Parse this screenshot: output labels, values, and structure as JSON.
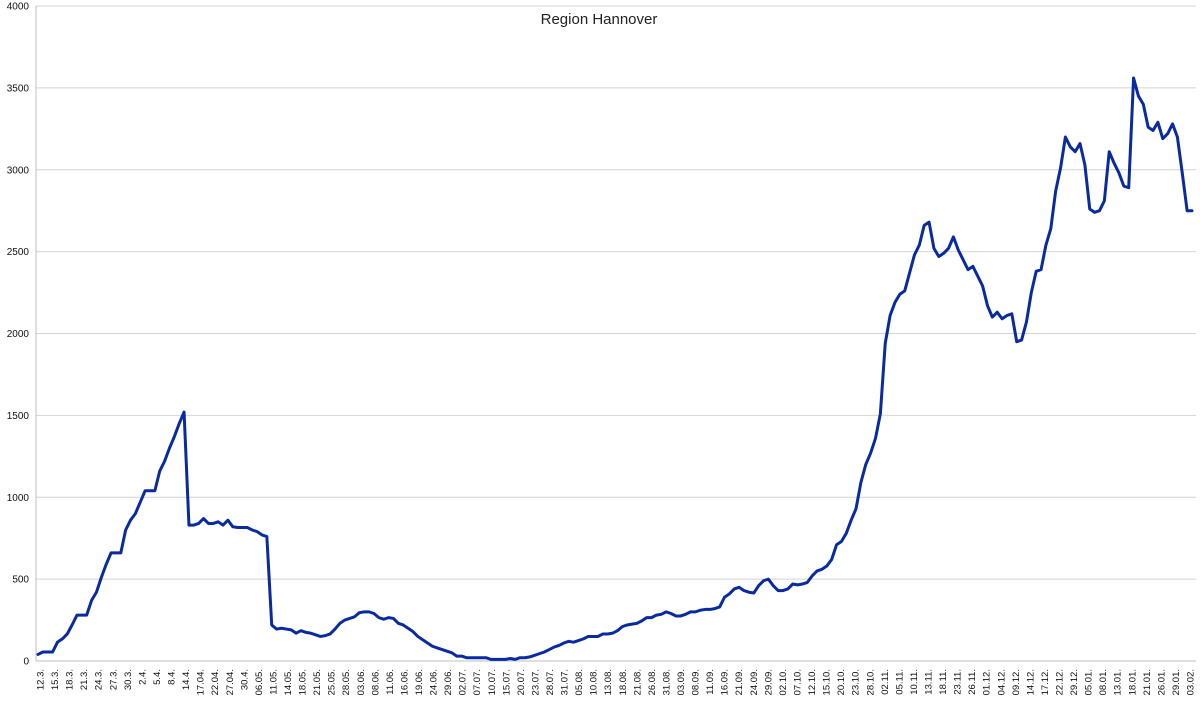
{
  "chart_data": {
    "type": "line",
    "title": "Region Hannover",
    "xlabel": "",
    "ylabel": "",
    "ylim": [
      0,
      4000
    ],
    "yticks": [
      0,
      500,
      1000,
      1500,
      2000,
      2500,
      3000,
      3500,
      4000
    ],
    "grid": true,
    "legend": "none",
    "x_tick_labels": [
      "12.3.",
      "15.3.",
      "18.3.",
      "21.3.",
      "24.3.",
      "27.3.",
      "30.3.",
      "2.4.",
      "5.4.",
      "8.4.",
      "14.4.",
      "17.04.",
      "22.04.",
      "27.04.",
      "30.4.",
      "06.05.",
      "11.05.",
      "14.05.",
      "18.05.",
      "21.05.",
      "25.05.",
      "28.05.",
      "03.06.",
      "08.06.",
      "11.06.",
      "16.06.",
      "19.06.",
      "24.06.",
      "29.06.",
      "02.07.",
      "07.07.",
      "10.07.",
      "15.07.",
      "20.07.",
      "23.07.",
      "28.07.",
      "31.07.",
      "05.08.",
      "10.08.",
      "13.08.",
      "18.08.",
      "21.08.",
      "26.08.",
      "31.08.",
      "03.09.",
      "08.09.",
      "11.09.",
      "16.09.",
      "21.09.",
      "24.09.",
      "29.09.",
      "02.10.",
      "07.10.",
      "12.10.",
      "15.10.",
      "20.10.",
      "23.10.",
      "28.10.",
      "02.11.",
      "05.11.",
      "10.11.",
      "13.11.",
      "18.11.",
      "23.11.",
      "26.11.",
      "01.12.",
      "04.12.",
      "09.12.",
      "14.12.",
      "17.12.",
      "22.12.",
      "29.12.",
      "05.01.",
      "08.01.",
      "13.01.",
      "18.01.",
      "21.01.",
      "26.01.",
      "29.01.",
      "03.02."
    ],
    "series": [
      {
        "color": "#0a2aa0",
        "values": [
          40,
          55,
          55,
          55,
          115,
          135,
          165,
          220,
          280,
          280,
          280,
          370,
          420,
          510,
          590,
          660,
          660,
          660,
          800,
          860,
          900,
          970,
          1040,
          1040,
          1040,
          1160,
          1220,
          1300,
          1370,
          1450,
          1520,
          830,
          830,
          840,
          870,
          840,
          840,
          850,
          830,
          860,
          820,
          815,
          815,
          815,
          800,
          790,
          770,
          760,
          220,
          195,
          200,
          195,
          190,
          170,
          185,
          175,
          170,
          160,
          150,
          155,
          165,
          195,
          230,
          250,
          260,
          270,
          295,
          300,
          300,
          290,
          265,
          255,
          265,
          260,
          230,
          220,
          200,
          180,
          150,
          130,
          110,
          90,
          80,
          70,
          60,
          50,
          30,
          30,
          20,
          20,
          20,
          20,
          20,
          10,
          10,
          10,
          10,
          15,
          10,
          20,
          20,
          25,
          35,
          45,
          55,
          70,
          85,
          95,
          110,
          120,
          115,
          125,
          135,
          150,
          150,
          150,
          165,
          165,
          170,
          185,
          210,
          220,
          225,
          230,
          245,
          265,
          265,
          280,
          285,
          300,
          290,
          275,
          275,
          285,
          300,
          300,
          310,
          315,
          315,
          320,
          330,
          390,
          410,
          440,
          450,
          430,
          420,
          415,
          460,
          490,
          500,
          460,
          430,
          430,
          440,
          470,
          465,
          470,
          480,
          520,
          550,
          560,
          580,
          620,
          710,
          730,
          780,
          860,
          930,
          1090,
          1200,
          1270,
          1360,
          1510,
          1940,
          2110,
          2190,
          2240,
          2260,
          2370,
          2480,
          2540,
          2660,
          2680,
          2520,
          2470,
          2490,
          2520,
          2590,
          2510,
          2450,
          2390,
          2410,
          2350,
          2290,
          2170,
          2100,
          2130,
          2090,
          2110,
          2120,
          1950,
          1960,
          2070,
          2250,
          2380,
          2390,
          2540,
          2640,
          2870,
          3010,
          3200,
          3140,
          3110,
          3160,
          3030,
          2760,
          2740,
          2750,
          2810,
          3110,
          3040,
          2980,
          2900,
          2890,
          3560,
          3450,
          3400,
          3260,
          3240,
          3290,
          3190,
          3220,
          3280,
          3200,
          2980,
          2750,
          2750
        ]
      }
    ]
  }
}
